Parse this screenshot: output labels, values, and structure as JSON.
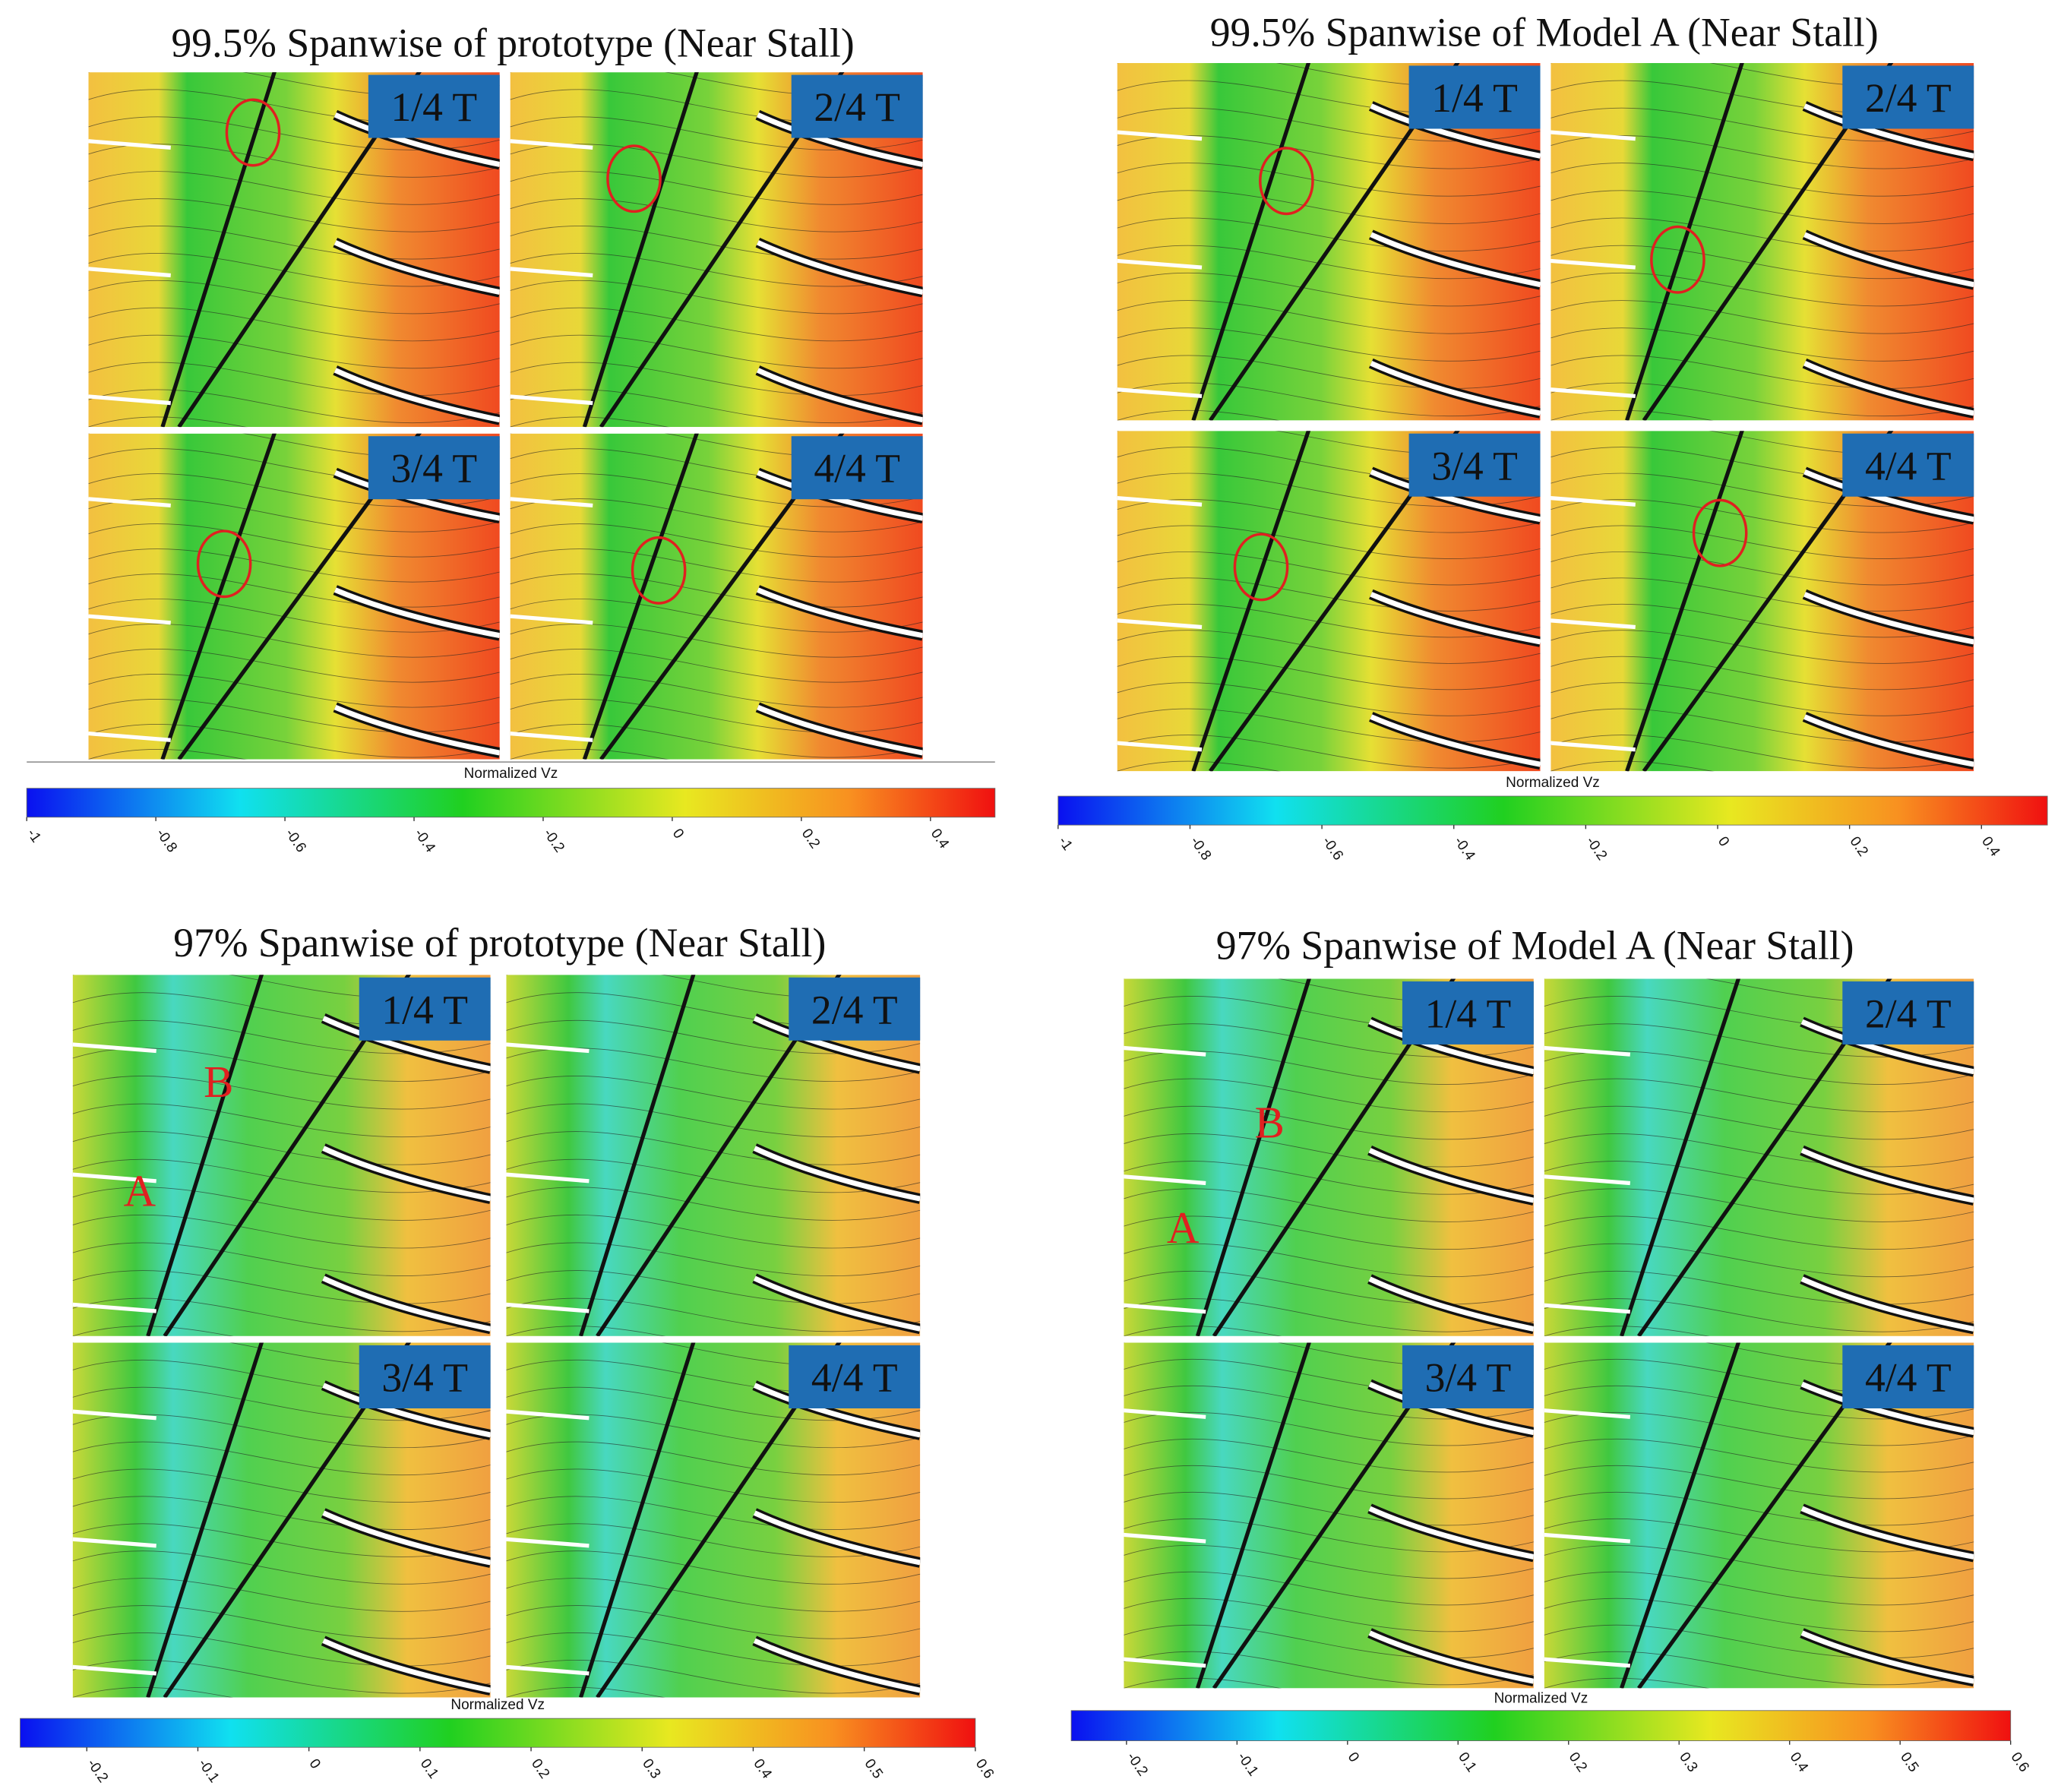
{
  "panels": [
    {
      "title": "99.5% Spanwise of prototype (Near Stall)",
      "frames": [
        "1/4 T",
        "2/4 T",
        "3/4 T",
        "4/4 T"
      ],
      "colorbar": {
        "label": "Normalized Vz",
        "lim": [
          -1,
          0.5
        ],
        "ticks": [
          -1,
          -0.8,
          -0.6,
          -0.4,
          -0.2,
          0,
          0.2,
          0.4
        ]
      }
    },
    {
      "title": "99.5% Spanwise of Model A (Near Stall)",
      "frames": [
        "1/4 T",
        "2/4 T",
        "3/4 T",
        "4/4 T"
      ],
      "colorbar": {
        "label": "Normalized Vz",
        "lim": [
          -1,
          0.5
        ],
        "ticks": [
          -1,
          -0.8,
          -0.6,
          -0.4,
          -0.2,
          0,
          0.2,
          0.4
        ]
      }
    },
    {
      "title": "97% Spanwise of prototype (Near Stall)",
      "frames": [
        "1/4 T",
        "2/4 T",
        "3/4 T",
        "4/4 T"
      ],
      "annotations": [
        "A",
        "B"
      ],
      "colorbar": {
        "label": "Normalized Vz",
        "lim": [
          -0.26,
          0.6
        ],
        "ticks": [
          -0.2,
          -0.1,
          0,
          0.1,
          0.2,
          0.3,
          0.4,
          0.5,
          0.6
        ]
      }
    },
    {
      "title": "97% Spanwise of Model A (Near Stall)",
      "frames": [
        "1/4 T",
        "2/4 T",
        "3/4 T",
        "4/4 T"
      ],
      "annotations": [
        "A",
        "B"
      ],
      "colorbar": {
        "label": "Normalized Vz",
        "lim": [
          -0.25,
          0.6
        ],
        "ticks": [
          -0.2,
          -0.1,
          0,
          0.1,
          0.2,
          0.3,
          0.4,
          0.5,
          0.6
        ]
      }
    }
  ]
}
